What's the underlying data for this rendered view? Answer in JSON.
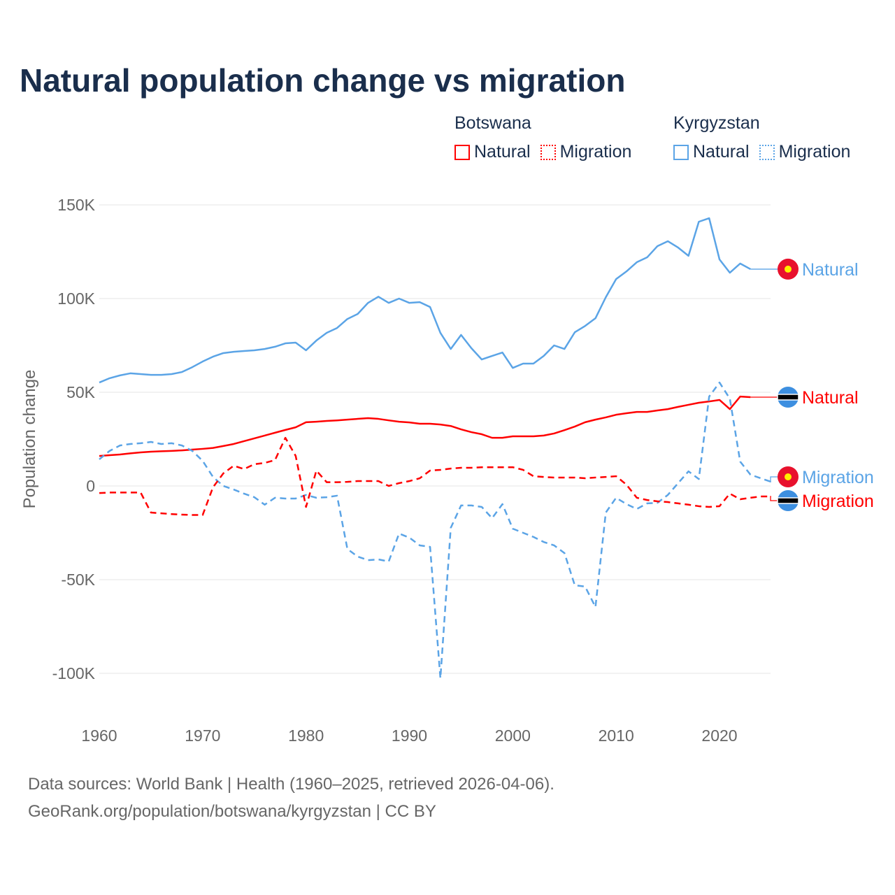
{
  "title": "Natural population change vs migration",
  "legend": {
    "groups": [
      {
        "name": "Botswana",
        "items": [
          {
            "label": "Natural",
            "style": "solid",
            "color": "#ff0000"
          },
          {
            "label": "Migration",
            "style": "dotted",
            "color": "#ff0000"
          }
        ]
      },
      {
        "name": "Kyrgyzstan",
        "items": [
          {
            "label": "Natural",
            "style": "solid",
            "color": "#5ba4e6"
          },
          {
            "label": "Migration",
            "style": "dotted",
            "color": "#5ba4e6"
          }
        ]
      }
    ]
  },
  "footer": {
    "line1": "Data sources: World Bank | Health (1960–2025, retrieved 2026-04-06).",
    "line2": "GeoRank.org/population/botswana/kyrgyzstan | CC BY"
  },
  "chart_data": {
    "type": "line",
    "title": "Natural population change vs migration",
    "ylabel": "Population change",
    "xlabel": "",
    "xlim": [
      1960,
      2025
    ],
    "ylim": [
      -110000,
      155000
    ],
    "xticks": [
      1960,
      1970,
      1980,
      1990,
      2000,
      2010,
      2020
    ],
    "xtick_labels": [
      "1960",
      "1970",
      "1980",
      "1990",
      "2000",
      "2010",
      "2020"
    ],
    "yticks": [
      150000,
      100000,
      50000,
      0,
      -50000,
      -100000
    ],
    "ytick_labels": [
      "150K",
      "100K",
      "50K",
      "0",
      "-50K",
      "-100K"
    ],
    "grid": true,
    "series": [
      {
        "name": "Kyrgyzstan Natural",
        "end_label": "Natural",
        "color": "#5ba4e6",
        "dash": false,
        "flag": "kg",
        "start": 1960,
        "values": [
          55200,
          57500,
          59000,
          60100,
          59700,
          59300,
          59300,
          59700,
          60800,
          63400,
          66400,
          69000,
          70900,
          71600,
          72000,
          72400,
          73100,
          74300,
          76100,
          76500,
          72400,
          77600,
          81700,
          84300,
          89100,
          91800,
          97700,
          101000,
          97700,
          100000,
          97700,
          98100,
          95500,
          81700,
          73100,
          80600,
          73500,
          67500,
          69400,
          71200,
          63000,
          65300,
          65300,
          69400,
          75000,
          73100,
          82000,
          85400,
          89500,
          100700,
          110400,
          114500,
          119400,
          122000,
          128000,
          130600,
          127200,
          122800,
          141000,
          142900,
          120900,
          113800,
          118700,
          115700
        ]
      },
      {
        "name": "Botswana Natural",
        "end_label": "Natural",
        "color": "#ff0000",
        "dash": false,
        "flag": "bw",
        "start": 1960,
        "values": [
          16000,
          16400,
          16800,
          17400,
          17900,
          18300,
          18500,
          18700,
          19000,
          19400,
          19800,
          20300,
          21300,
          22400,
          23900,
          25400,
          26900,
          28400,
          29900,
          31300,
          34000,
          34300,
          34700,
          35000,
          35400,
          35800,
          36200,
          35800,
          35000,
          34300,
          33900,
          33200,
          33200,
          32800,
          32000,
          30200,
          28700,
          27600,
          25700,
          25700,
          26500,
          26500,
          26500,
          26900,
          28000,
          29800,
          31700,
          34000,
          35400,
          36600,
          38000,
          38800,
          39500,
          39500,
          40300,
          41000,
          42200,
          43300,
          44400,
          45100,
          45900,
          41000,
          47700,
          47400
        ]
      },
      {
        "name": "Kyrgyzstan Migration",
        "end_label": "Migration",
        "color": "#5ba4e6",
        "dash": true,
        "flag": "kg",
        "start": 1960,
        "values": [
          14200,
          18700,
          21600,
          22400,
          22800,
          23500,
          22400,
          22800,
          21600,
          18700,
          13400,
          4800,
          0,
          -1900,
          -4100,
          -6000,
          -10000,
          -6300,
          -6700,
          -6700,
          -4800,
          -6300,
          -6000,
          -5200,
          -33600,
          -37700,
          -39600,
          -39200,
          -40300,
          -25400,
          -27600,
          -31700,
          -32500,
          -102600,
          -22400,
          -10400,
          -10400,
          -11200,
          -17200,
          -9700,
          -22800,
          -25000,
          -27200,
          -29900,
          -31700,
          -35800,
          -53000,
          -53700,
          -64600,
          -14200,
          -6300,
          -9700,
          -12300,
          -9300,
          -9000,
          -4800,
          1500,
          7800,
          3700,
          47700,
          55200,
          46600,
          13000,
          6000,
          4100,
          2200
        ]
      },
      {
        "name": "Botswana Migration",
        "end_label": "Migration",
        "color": "#ff0000",
        "dash": true,
        "flag": "bw",
        "start": 1960,
        "values": [
          -3800,
          -3500,
          -3500,
          -3500,
          -3500,
          -14200,
          -14600,
          -15000,
          -15300,
          -15500,
          -15500,
          -700,
          6700,
          10800,
          9000,
          11600,
          12300,
          13800,
          25700,
          16000,
          -11200,
          8200,
          2000,
          2000,
          2200,
          2600,
          2600,
          2600,
          0,
          1500,
          2600,
          4100,
          8200,
          8600,
          9300,
          9700,
          9700,
          10000,
          10000,
          10000,
          10000,
          8600,
          5200,
          4800,
          4500,
          4500,
          4500,
          4100,
          4500,
          4800,
          5200,
          700,
          -6300,
          -7500,
          -8200,
          -8600,
          -9300,
          -10000,
          -10800,
          -11200,
          -10800,
          -4100,
          -7100,
          -6300,
          -5600,
          -5600
        ]
      }
    ]
  }
}
